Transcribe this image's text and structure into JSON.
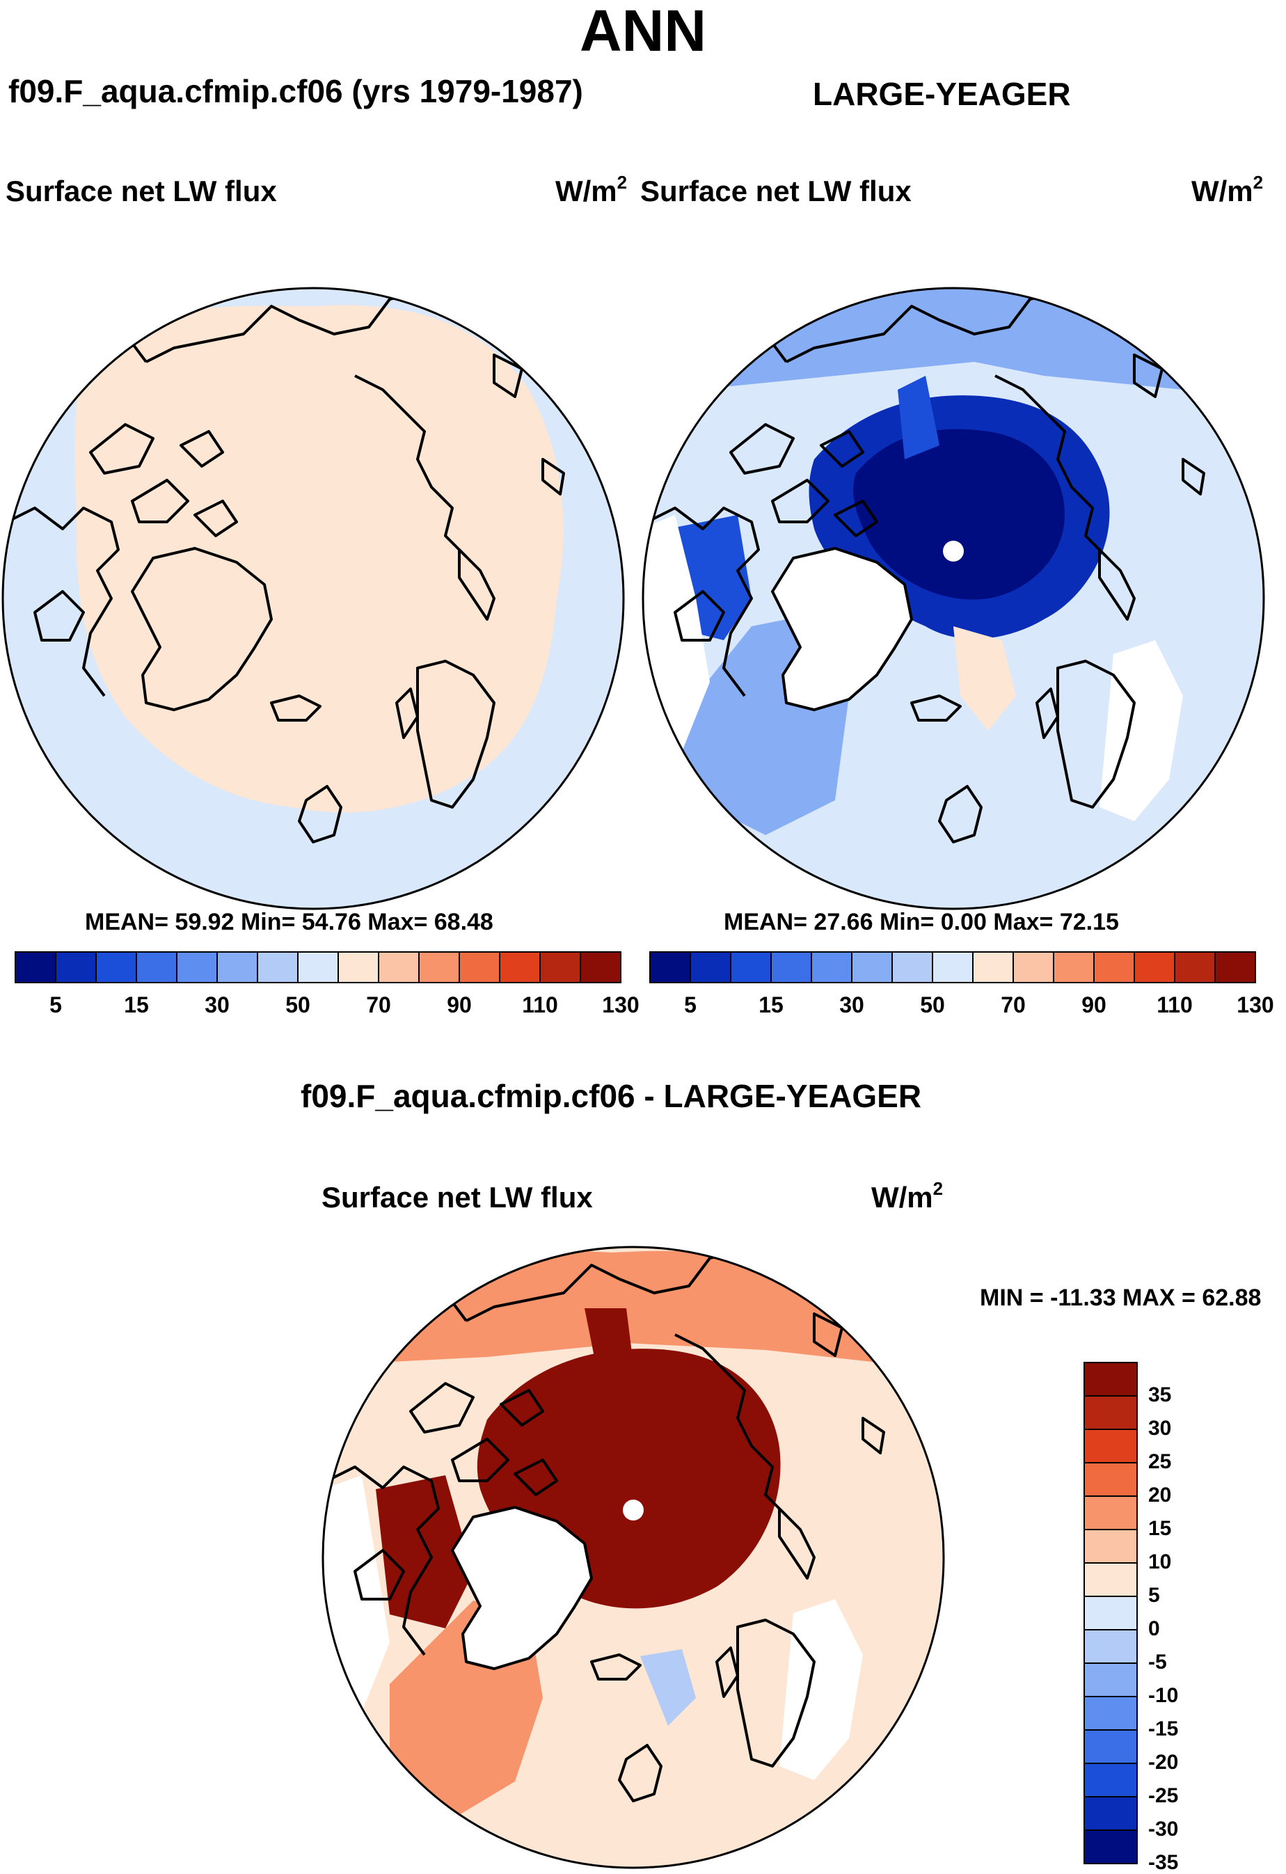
{
  "title": "ANN",
  "panels": [
    {
      "id": "model",
      "case_title": "f09.F_aqua.cfmip.cf06 (yrs 1979-1987)",
      "variable": "Surface net LW flux",
      "units_base": "W/m",
      "units_exp": "2",
      "stats": "MEAN=  59.92  Min=  54.76  Max=  68.48",
      "colorbar_labels": [
        "5",
        "15",
        "30",
        "50",
        "70",
        "90",
        "110",
        "130"
      ]
    },
    {
      "id": "obs",
      "case_title": "LARGE-YEAGER",
      "variable": "Surface net LW flux",
      "units_base": "W/m",
      "units_exp": "2",
      "stats": "MEAN=  27.66  Min=   0.00  Max=  72.15",
      "colorbar_labels": [
        "5",
        "15",
        "30",
        "50",
        "70",
        "90",
        "110",
        "130"
      ]
    },
    {
      "id": "diff",
      "case_title": "f09.F_aqua.cfmip.cf06 - LARGE-YEAGER",
      "variable": "Surface net LW flux",
      "units_base": "W/m",
      "units_exp": "2",
      "stats": "MIN = -11.33 MAX =  62.88",
      "colorbar_labels": [
        "35",
        "30",
        "25",
        "20",
        "15",
        "10",
        "5",
        "0",
        "-5",
        "-10",
        "-15",
        "-20",
        "-25",
        "-30",
        "-35"
      ]
    }
  ],
  "colors": {
    "abs_scale": [
      "#000d80",
      "#0a2db8",
      "#1b4fd9",
      "#3a6fe8",
      "#5d8ef0",
      "#87adf5",
      "#b2cbf7",
      "#d9e8fb",
      "#fde6d4",
      "#fcc4a6",
      "#f8946b",
      "#f06c40",
      "#e0401c",
      "#b52710",
      "#8a0d06"
    ],
    "diff_scale": [
      "#8a0d06",
      "#b52710",
      "#e0401c",
      "#f06c40",
      "#f8946b",
      "#fcc4a6",
      "#fde6d4",
      "#d9e8fb",
      "#b2cbf7",
      "#87adf5",
      "#5d8ef0",
      "#3a6fe8",
      "#1b4fd9",
      "#0a2db8",
      "#000d80"
    ]
  }
}
